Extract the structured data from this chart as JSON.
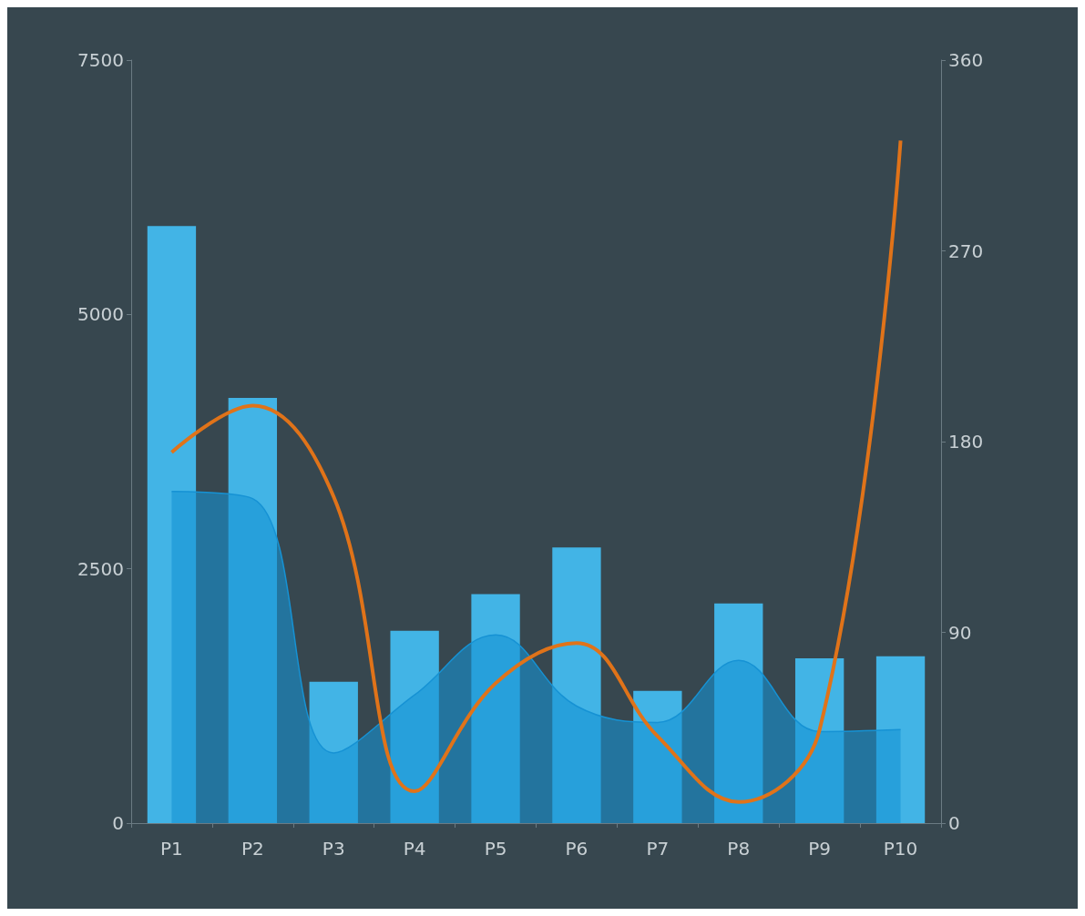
{
  "chart_data": {
    "type": "bar",
    "categories": [
      "P1",
      "P2",
      "P3",
      "P4",
      "P5",
      "P6",
      "P7",
      "P8",
      "P9",
      "P10"
    ],
    "series": [
      {
        "color": "#42b4e6",
        "values": [
          5870,
          4180,
          1390,
          1890,
          2250,
          2710,
          1300,
          2160,
          1620,
          1640
        ]
      },
      {
        "type": "area",
        "color": "#1692d4",
        "values": [
          3260,
          3190,
          690,
          1260,
          1850,
          1150,
          990,
          1600,
          900,
          920
        ]
      },
      {
        "type": "line",
        "color": "#e07319",
        "axis": "y2",
        "values": [
          175,
          197,
          154,
          15,
          66,
          85,
          41,
          10,
          44,
          322
        ]
      }
    ],
    "ylim": [
      0,
      7500
    ],
    "yticks": [
      0,
      2500,
      5000,
      7500
    ],
    "y2lim": [
      0,
      360
    ],
    "y2ticks": [
      0,
      90,
      180,
      270,
      360
    ],
    "grid": false,
    "marker": "none",
    "line_style": "solid"
  }
}
